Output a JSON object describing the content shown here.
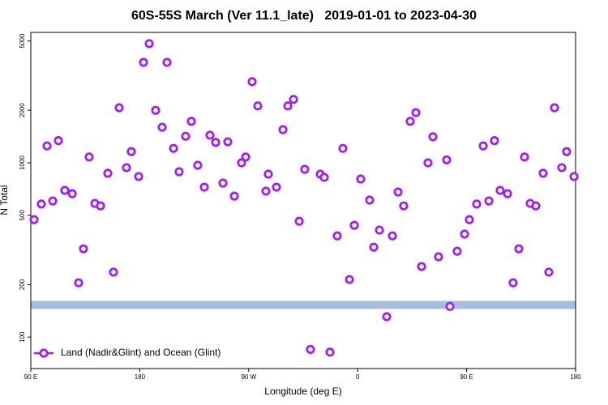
{
  "chart_data": {
    "type": "scatter",
    "title": "60S-55S March (Ver 11.1_late)   2019-01-01 to 2023-04-30",
    "x_label": "Longitude (deg E)",
    "y_label": "N Total",
    "log_y": true,
    "xlim": [
      90,
      540
    ],
    "xticks": [
      {
        "value": 90,
        "label": "90 E"
      },
      {
        "value": 180,
        "label": "180"
      },
      {
        "value": 270,
        "label": "90 W"
      },
      {
        "value": 360,
        "label": "0"
      },
      {
        "value": 450,
        "label": "90 E"
      },
      {
        "value": 540,
        "label": "180"
      }
    ],
    "ylim": [
      66,
      5600
    ],
    "yticks": [
      100,
      200,
      500,
      1000,
      2000,
      5000
    ],
    "legend_position": "lower left",
    "reference_band": {
      "value": 153,
      "color": "#a6bde0"
    },
    "series": [
      {
        "name": "Land (Nadir&Glint) and Ocean (Glint)",
        "color": "#a020f0",
        "x": [
          92.7,
          98.7,
          103.4,
          108.1,
          112.8,
          118.1,
          124.2,
          129.5,
          133.5,
          138.2,
          142.9,
          147.6,
          153.6,
          158.3,
          163.0,
          169.0,
          173.0,
          179.1,
          183.1,
          187.8,
          193.1,
          198.5,
          202.5,
          207.9,
          212.5,
          217.9,
          222.6,
          227.9,
          233.3,
          238.0,
          242.7,
          248.7,
          252.7,
          258.1,
          264.1,
          267.5,
          272.8,
          277.5,
          284.2,
          286.2,
          292.9,
          298.3,
          302.3,
          307.0,
          311.7,
          316.3,
          321.0,
          329.1,
          332.4,
          337.1,
          343.1,
          347.8,
          353.2,
          357.2,
          362.5,
          369.9,
          373.3,
          378.0,
          384.0,
          388.7,
          393.4,
          398.0,
          403.4,
          408.1,
          412.8,
          418.1,
          422.2,
          426.8,
          433.5,
          436.2,
          442.2,
          448.3,
          452.3,
          458.3,
          463.7,
          468.4,
          473.0,
          477.7,
          483.8,
          488.4,
          493.1,
          497.8,
          502.5,
          507.2,
          513.2,
          517.9,
          522.6,
          528.6,
          532.6,
          538.7
        ],
        "values": [
          472,
          580,
          1250,
          604,
          1340,
          695,
          665,
          205,
          321,
          1080,
          585,
          566,
          871,
          236,
          2070,
          938,
          1160,
          834,
          3770,
          4830,
          2000,
          1600,
          3770,
          1210,
          889,
          1420,
          1730,
          968,
          725,
          1440,
          1310,
          765,
          1320,
          644,
          1000,
          1080,
          2920,
          2120,
          688,
          861,
          725,
          1550,
          2120,
          2310,
          462,
          918,
          85,
          861,
          825,
          82,
          381,
          1210,
          214,
          438,
          807,
          611,
          328,
          411,
          131,
          381,
          680,
          566,
          1730,
          1940,
          254,
          1000,
          1410,
          289,
          1040,
          150,
          311,
          390,
          472,
          580,
          1250,
          604,
          1340,
          695,
          665,
          205,
          321,
          1080,
          585,
          566,
          871,
          236,
          2070,
          938,
          1160,
          834
        ]
      }
    ]
  }
}
